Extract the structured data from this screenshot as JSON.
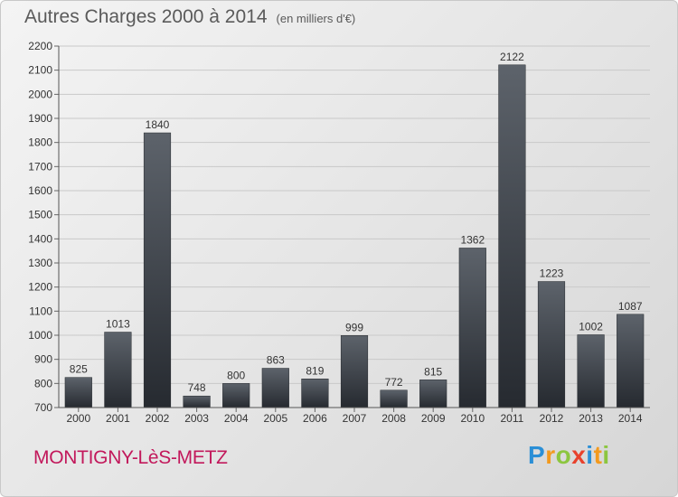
{
  "title": "Autres Charges 2000 à 2014",
  "subtitle": "(en milliers d'€)",
  "town": "MONTIGNY-LèS-METZ",
  "brand": {
    "letters": [
      "P",
      "r",
      "o",
      "x",
      "i",
      "t",
      "i"
    ],
    "colors": [
      "#2b8fd6",
      "#f39a1e",
      "#8cc63f",
      "#e8412c",
      "#2b8fd6",
      "#f39a1e",
      "#8cc63f"
    ]
  },
  "chart_data": {
    "type": "bar",
    "categories": [
      "2000",
      "2001",
      "2002",
      "2003",
      "2004",
      "2005",
      "2006",
      "2007",
      "2008",
      "2009",
      "2010",
      "2011",
      "2012",
      "2013",
      "2014"
    ],
    "values": [
      825,
      1013,
      1840,
      748,
      800,
      863,
      819,
      999,
      772,
      815,
      1362,
      2122,
      1223,
      1002,
      1087
    ],
    "ylim": [
      700,
      2200
    ],
    "yticks": [
      700,
      800,
      900,
      1000,
      1100,
      1200,
      1300,
      1400,
      1500,
      1600,
      1700,
      1800,
      1900,
      2000,
      2100,
      2200
    ],
    "grid": true,
    "bar_color": "#3a3f47"
  }
}
